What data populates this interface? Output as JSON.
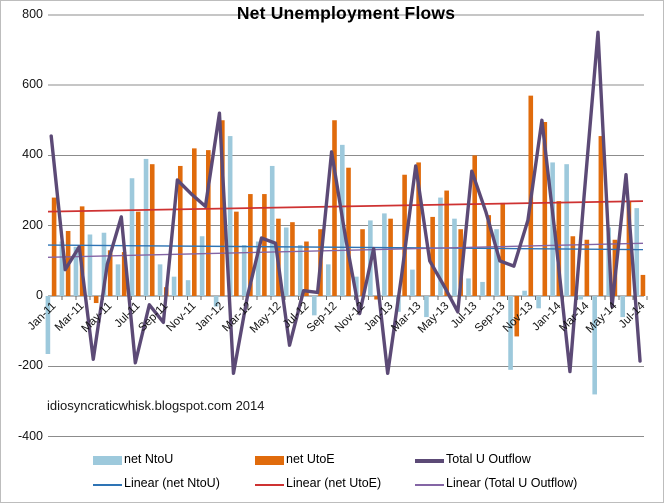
{
  "title": "Net Unemployment Flows",
  "watermark": "idiosyncraticwhisk.blogspot.com 2014",
  "colors": {
    "ntou_bar": "#9dc9dc",
    "utoe_bar": "#e06b0c",
    "outflow_line": "#5c4a76",
    "trend_ntou": "#2e74b5",
    "trend_utoe": "#ce3232",
    "trend_outflow": "#8465a5",
    "gridline": "#8c8c8c",
    "axis": "#6b6b6b"
  },
  "legend": {
    "items": [
      {
        "label": "net NtoU",
        "swatch": "bar",
        "color": "#9dc9dc"
      },
      {
        "label": "net UtoE",
        "swatch": "bar",
        "color": "#e06b0c"
      },
      {
        "label": "Total U Outflow",
        "swatch": "thick-line",
        "color": "#5c4a76"
      },
      {
        "label": "Linear (net NtoU)",
        "swatch": "thin-line",
        "color": "#2e74b5"
      },
      {
        "label": "Linear (net UtoE)",
        "swatch": "thin-line",
        "color": "#ce3232"
      },
      {
        "label": "Linear (Total U Outflow)",
        "swatch": "thin-line",
        "color": "#8465a5"
      }
    ]
  },
  "chart_data": {
    "type": "bar",
    "subtype": "grouped-bars-with-line-overlay",
    "title": "Net Unemployment Flows",
    "xlabel": "",
    "ylabel": "",
    "ylim": [
      -400,
      800
    ],
    "ytick_step": 200,
    "yticks": [
      800,
      600,
      400,
      200,
      0,
      -200,
      -400
    ],
    "grid": true,
    "legend_position": "bottom",
    "x_labels_every": 2,
    "categories": [
      "Jan-11",
      "Feb-11",
      "Mar-11",
      "Apr-11",
      "May-11",
      "Jun-11",
      "Jul-11",
      "Aug-11",
      "Sep-11",
      "Oct-11",
      "Nov-11",
      "Dec-11",
      "Jan-12",
      "Feb-12",
      "Mar-12",
      "Apr-12",
      "May-12",
      "Jun-12",
      "Jul-12",
      "Aug-12",
      "Sep-12",
      "Oct-12",
      "Nov-12",
      "Dec-12",
      "Jan-13",
      "Feb-13",
      "Mar-13",
      "Apr-13",
      "May-13",
      "Jun-13",
      "Jul-13",
      "Aug-13",
      "Sep-13",
      "Oct-13",
      "Nov-13",
      "Dec-13",
      "Jan-14",
      "Feb-14",
      "Mar-14",
      "Apr-14",
      "May-14",
      "Jun-14",
      "Jul-14"
    ],
    "series": [
      {
        "name": "net NtoU",
        "type": "bar",
        "values": [
          -165,
          155,
          140,
          175,
          180,
          90,
          335,
          390,
          90,
          55,
          45,
          170,
          -30,
          455,
          145,
          155,
          370,
          195,
          145,
          -55,
          90,
          430,
          55,
          215,
          235,
          -45,
          75,
          -60,
          280,
          220,
          50,
          40,
          190,
          -210,
          15,
          -35,
          380,
          375,
          -10,
          -280,
          195,
          -60,
          250
        ]
      },
      {
        "name": "net UtoE",
        "type": "bar",
        "values": [
          280,
          185,
          255,
          -20,
          130,
          125,
          240,
          375,
          25,
          370,
          420,
          415,
          500,
          240,
          290,
          290,
          220,
          210,
          155,
          190,
          500,
          365,
          190,
          -10,
          220,
          345,
          380,
          225,
          300,
          190,
          400,
          230,
          265,
          -115,
          570,
          495,
          270,
          170,
          160,
          455,
          160,
          270,
          60
        ]
      },
      {
        "name": "Total U Outflow",
        "type": "line",
        "values": [
          455,
          75,
          140,
          -180,
          90,
          225,
          -190,
          -25,
          -75,
          330,
          290,
          255,
          520,
          -220,
          0,
          165,
          150,
          -140,
          15,
          10,
          410,
          165,
          -50,
          135,
          -220,
          60,
          370,
          100,
          30,
          -45,
          355,
          240,
          100,
          85,
          215,
          500,
          155,
          -215,
          280,
          750,
          -30,
          345,
          -185
        ]
      },
      {
        "name": "Linear (net NtoU)",
        "type": "trend",
        "endpoints": [
          145,
          132
        ]
      },
      {
        "name": "Linear (net UtoE)",
        "type": "trend",
        "endpoints": [
          240,
          270
        ]
      },
      {
        "name": "Linear (Total U Outflow)",
        "type": "trend",
        "endpoints": [
          110,
          150
        ]
      }
    ]
  }
}
